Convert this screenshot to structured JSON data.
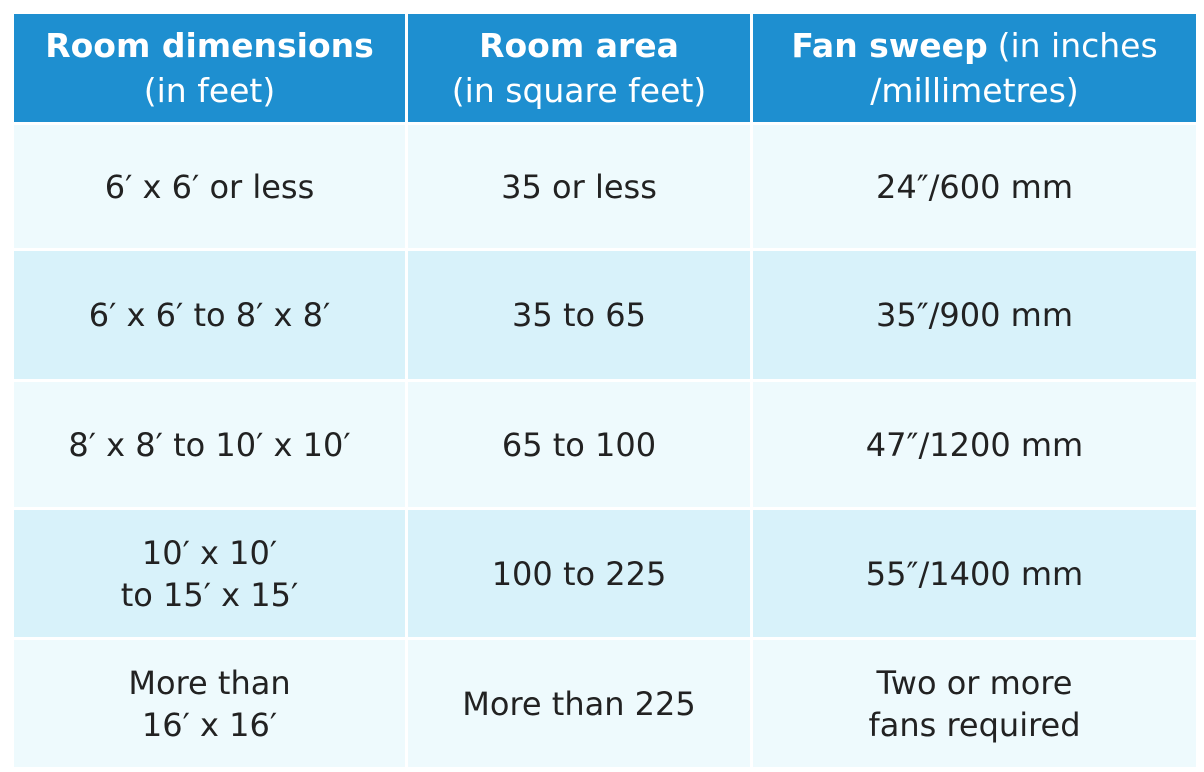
{
  "table": {
    "header": [
      {
        "lines": [
          [
            {
              "text": "Room dimensions",
              "bold": true
            }
          ],
          [
            {
              "text": "(in feet)"
            }
          ]
        ]
      },
      {
        "lines": [
          [
            {
              "text": "Room area",
              "bold": true
            }
          ],
          [
            {
              "text": "(in square feet)"
            }
          ]
        ]
      },
      {
        "lines": [
          [
            {
              "text": "Fan sweep",
              "bold": true
            },
            {
              "text": "(in inches"
            }
          ],
          [
            {
              "text": "/millimetres)"
            }
          ]
        ]
      }
    ],
    "rows": [
      [
        [
          "6′ x 6′ or less"
        ],
        [
          "35 or less"
        ],
        [
          "24″/600 mm"
        ]
      ],
      [
        [
          "6′ x 6′ to 8′ x 8′"
        ],
        [
          "35 to 65"
        ],
        [
          "35″/900 mm"
        ]
      ],
      [
        [
          "8′ x 8′ to 10′ x 10′"
        ],
        [
          "65 to 100"
        ],
        [
          "47″/1200 mm"
        ]
      ],
      [
        [
          "10′ x 10′",
          "to 15′ x 15′"
        ],
        [
          "100 to 225"
        ],
        [
          "55″/1400 mm"
        ]
      ],
      [
        [
          "More than",
          "16′ x 16′"
        ],
        [
          "More than 225"
        ],
        [
          "Two or more",
          "fans required"
        ]
      ]
    ]
  }
}
